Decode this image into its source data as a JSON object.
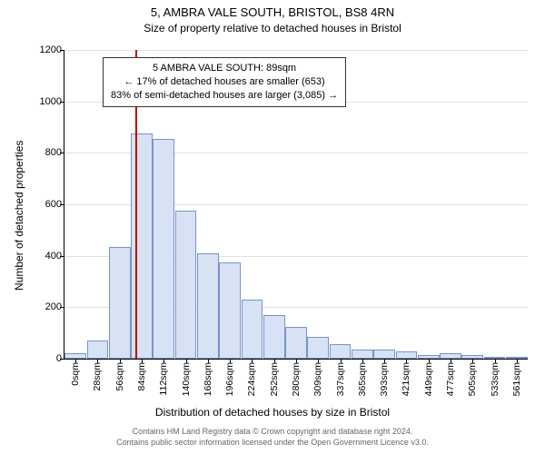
{
  "chart": {
    "type": "histogram",
    "title": "5, AMBRA VALE SOUTH, BRISTOL, BS8 4RN",
    "title_fontsize": 13,
    "subtitle": "Size of property relative to detached houses in Bristol",
    "subtitle_fontsize": 12,
    "ylabel": "Number of detached properties",
    "ylabel_fontsize": 12,
    "xlabel": "Distribution of detached houses by size in Bristol",
    "xlabel_fontsize": 12,
    "attribution_line1": "Contains HM Land Registry data © Crown copyright and database right 2024.",
    "attribution_line2": "Contains public sector information licensed under the Open Government Licence v3.0.",
    "attribution_fontsize": 9,
    "ylim_min": 0,
    "ylim_max": 1200,
    "ytick_step": 200,
    "yticks": [
      0,
      200,
      400,
      600,
      800,
      1000,
      1200
    ],
    "xticks": [
      "0sqm",
      "28sqm",
      "56sqm",
      "84sqm",
      "112sqm",
      "140sqm",
      "168sqm",
      "196sqm",
      "224sqm",
      "252sqm",
      "280sqm",
      "309sqm",
      "337sqm",
      "365sqm",
      "393sqm",
      "421sqm",
      "449sqm",
      "477sqm",
      "505sqm",
      "533sqm",
      "561sqm"
    ],
    "values": [
      20,
      70,
      435,
      875,
      855,
      575,
      410,
      375,
      230,
      170,
      125,
      85,
      55,
      35,
      35,
      30,
      15,
      20,
      15,
      7,
      7
    ],
    "bar_fill": "#d7e2f4",
    "bar_border": "#7a93c4",
    "background": "#ffffff",
    "grid_color": "#e0e0e0",
    "axis_color": "#000000",
    "marker": {
      "line_color": "#c00000",
      "position_index": 3.2,
      "box_lines": {
        "l1": "5 AMBRA VALE SOUTH: 89sqm",
        "l2": "← 17% of detached houses are smaller (653)",
        "l3": "83% of semi-detached houses are larger (3,085) →"
      },
      "box_border": "#333333",
      "box_bg": "#ffffff",
      "box_fontsize": 11
    }
  }
}
